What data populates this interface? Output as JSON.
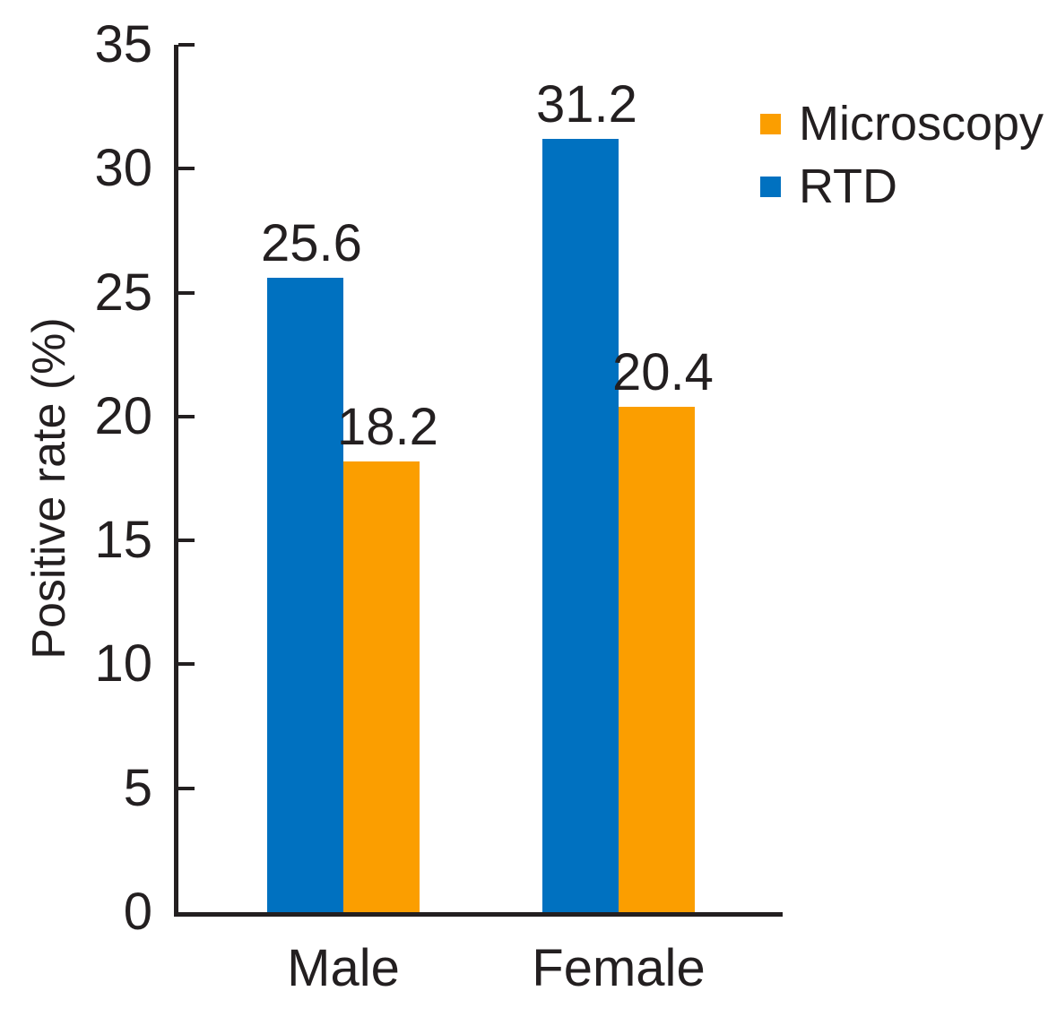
{
  "chart_data": {
    "type": "bar",
    "categories": [
      "Male",
      "Female"
    ],
    "series": [
      {
        "name": "RTD",
        "color": "#0071C0",
        "values": [
          25.6,
          31.2
        ]
      },
      {
        "name": "Microscopy",
        "color": "#FB9E00",
        "values": [
          18.2,
          20.4
        ]
      }
    ],
    "legend_order": [
      1,
      0
    ],
    "value_labels": [
      "25.6",
      "18.2",
      "31.2",
      "20.4"
    ],
    "title": "",
    "xlabel": "",
    "ylabel": "Positive rate (%)",
    "ylim": [
      0,
      35
    ],
    "yticks": [
      0,
      5,
      10,
      15,
      20,
      25,
      30,
      35
    ],
    "grid": false,
    "legend_position": "upper-right",
    "text_color": "#231F20"
  }
}
